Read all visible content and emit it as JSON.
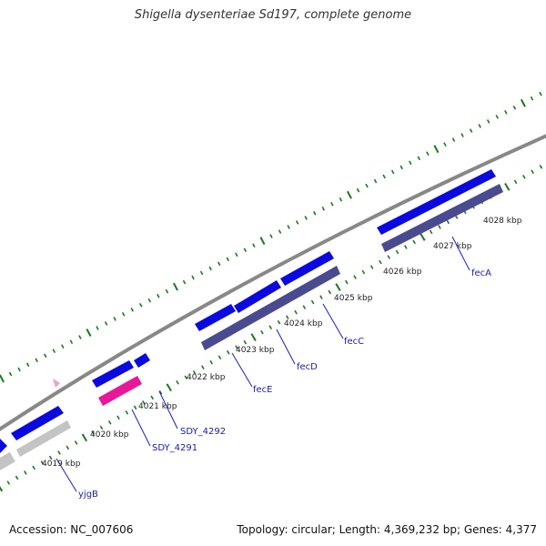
{
  "title": "Shigella dysenteriae Sd197, complete genome",
  "footer": {
    "accession": "Accession: NC_007606",
    "topology": "Topology: circular; Length: 4,369,232 bp; Genes: 4,377"
  },
  "colors": {
    "backbone": "#888888",
    "tick": "#1a7a1a",
    "cds_forward": "#0a0ae0",
    "cds_reverse": "#4a4a90",
    "cds_pink": "#e8179a",
    "cds_gray": "#c4c4c4",
    "label_line": "#1a1acc"
  },
  "kbp_labels": [
    "4019 kbp",
    "4020 kbp",
    "4021 kbp",
    "4022 kbp",
    "4023 kbp",
    "4024 kbp",
    "4025 kbp",
    "4026 kbp",
    "4027 kbp",
    "4028 kbp"
  ],
  "gene_labels": [
    "yjgB",
    "SDY_4291",
    "SDY_4292",
    "fecE",
    "fecD",
    "fecC",
    "fecA"
  ]
}
